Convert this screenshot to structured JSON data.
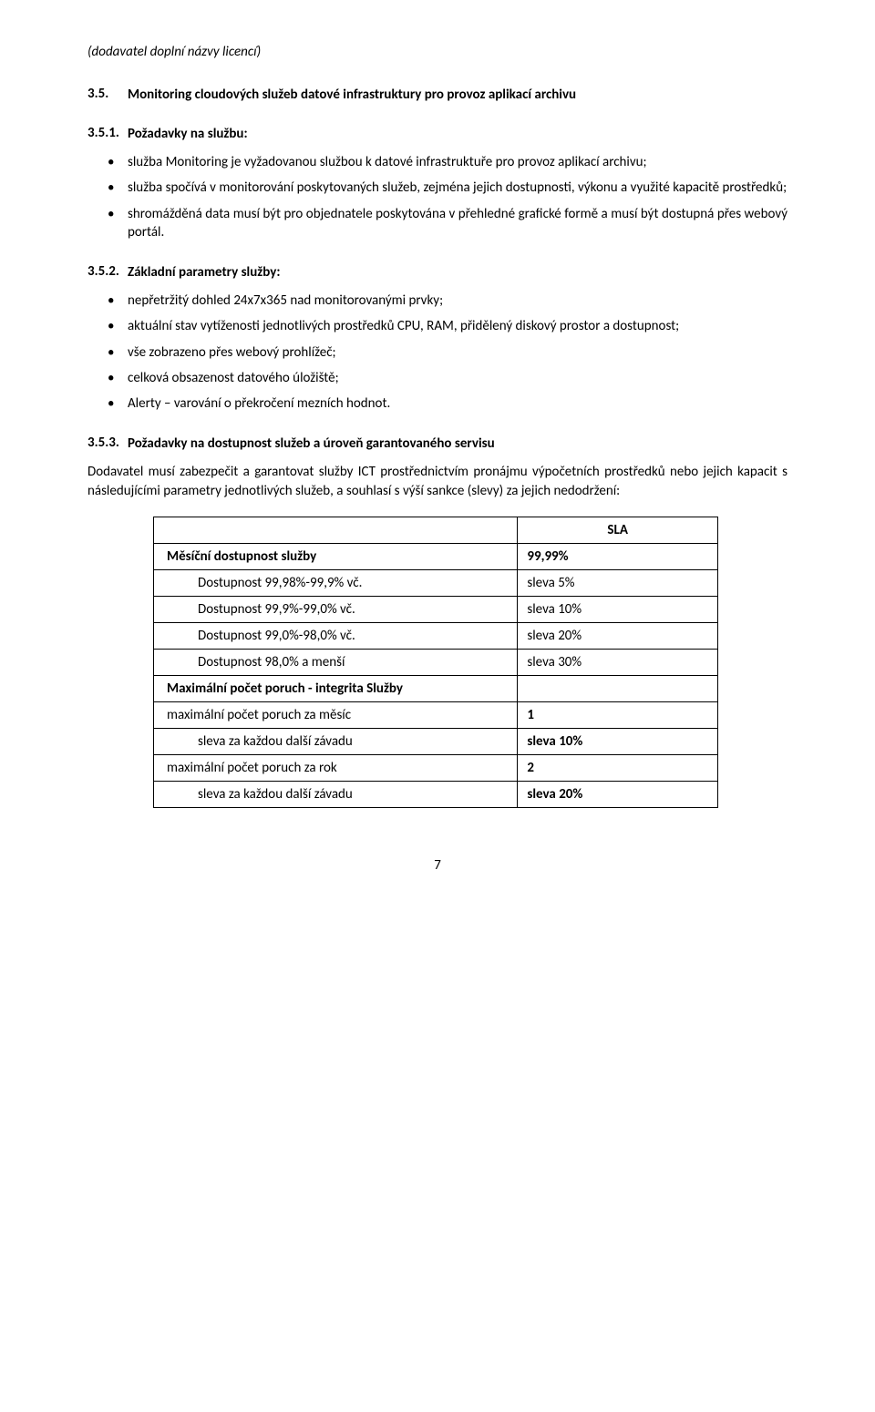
{
  "note_italic": "(dodavatel doplní názvy licencí)",
  "sec35": {
    "num": "3.5.",
    "title": "Monitoring cloudových služeb datové infrastruktury pro provoz aplikací archivu"
  },
  "sec351": {
    "num": "3.5.1.",
    "title": "Požadavky na službu:",
    "items": [
      "služba Monitoring je vyžadovanou službou k datové infrastruktuře pro provoz aplikací archivu;",
      "služba spočívá v monitorování poskytovaných služeb, zejména jejich dostupnosti, výkonu a využité kapacitě prostředků;",
      "shromážděná data musí být pro objednatele poskytována v přehledné grafické formě a musí být dostupná přes webový portál."
    ]
  },
  "sec352": {
    "num": "3.5.2.",
    "title": "Základní parametry služby:",
    "items": [
      "nepřetržitý dohled 24x7x365 nad monitorovanými prvky;",
      "aktuální stav vytíženosti jednotlivých prostředků CPU, RAM, přidělený diskový prostor a dostupnost;",
      "vše zobrazeno přes webový prohlížeč;",
      "celková obsazenost datového úložiště;",
      "Alerty – varování o překročení mezních hodnot."
    ]
  },
  "sec353": {
    "num": "3.5.3.",
    "title": "Požadavky na dostupnost služeb a úroveň garantovaného servisu"
  },
  "para_guarantee": "Dodavatel musí zabezpečit a garantovat služby ICT prostřednictvím pronájmu výpočetních prostředků nebo jejich kapacit s následujícími parametry jednotlivých služeb, a souhlasí s výší sankce (slevy) za jejich nedodržení:",
  "sla_table": {
    "header_col2": "SLA",
    "rows": [
      {
        "c1": "Měsíční dostupnost služby",
        "c2": "99,99%",
        "bold": true,
        "indent": 0
      },
      {
        "c1": "Dostupnost 99,98%-99,9% vč.",
        "c2": "sleva 5%",
        "bold": false,
        "indent": 1
      },
      {
        "c1": "Dostupnost 99,9%-99,0% vč.",
        "c2": "sleva 10%",
        "bold": false,
        "indent": 1
      },
      {
        "c1": "Dostupnost 99,0%-98,0% vč.",
        "c2": "sleva 20%",
        "bold": false,
        "indent": 1
      },
      {
        "c1": "Dostupnost 98,0% a menší",
        "c2": "sleva 30%",
        "bold": false,
        "indent": 1
      },
      {
        "c1": "Maximální počet poruch - integrita Služby",
        "c2": "",
        "bold": true,
        "indent": 0
      },
      {
        "c1": "maximální počet poruch za měsíc",
        "c2": "1",
        "bold": false,
        "indent": 0,
        "c2bold": true
      },
      {
        "c1": "sleva za každou další závadu",
        "c2": "sleva 10%",
        "bold": false,
        "indent": 1,
        "c2bold": true
      },
      {
        "c1": "maximální počet poruch za rok",
        "c2": "2",
        "bold": false,
        "indent": 0,
        "c2bold": true
      },
      {
        "c1": "sleva za každou další závadu",
        "c2": "sleva 20%",
        "bold": false,
        "indent": 1,
        "c2bold": true
      }
    ]
  },
  "page_number": "7"
}
